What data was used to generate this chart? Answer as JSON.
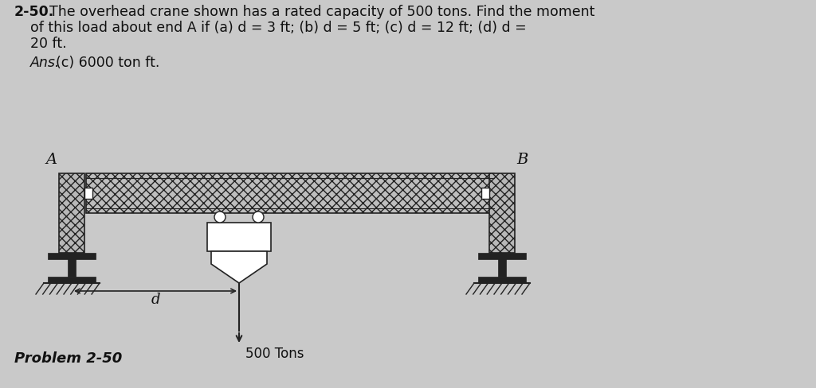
{
  "bg_color": "#c9c9c9",
  "text_color": "#111111",
  "title_bold": "2-50.",
  "title_rest1": "  The overhead crane shown has a rated capacity of 500 tons. Find the moment",
  "title_line2": "        of this load about end A if (a) d = 3 ft; (b) d = 5 ft; (c) d = 12 ft; (d) d =",
  "title_line3": "        20 ft.",
  "ans_line": "Ans.  (c) 6000 ton ft.",
  "label_A": "A",
  "label_B": "B",
  "label_d": "d",
  "label_load": "500 Tons",
  "label_problem": "Problem 2-50",
  "beam_fill": "#bebebe",
  "col_fill": "#b8b8b8",
  "structure_color": "#222222",
  "white": "#ffffff"
}
